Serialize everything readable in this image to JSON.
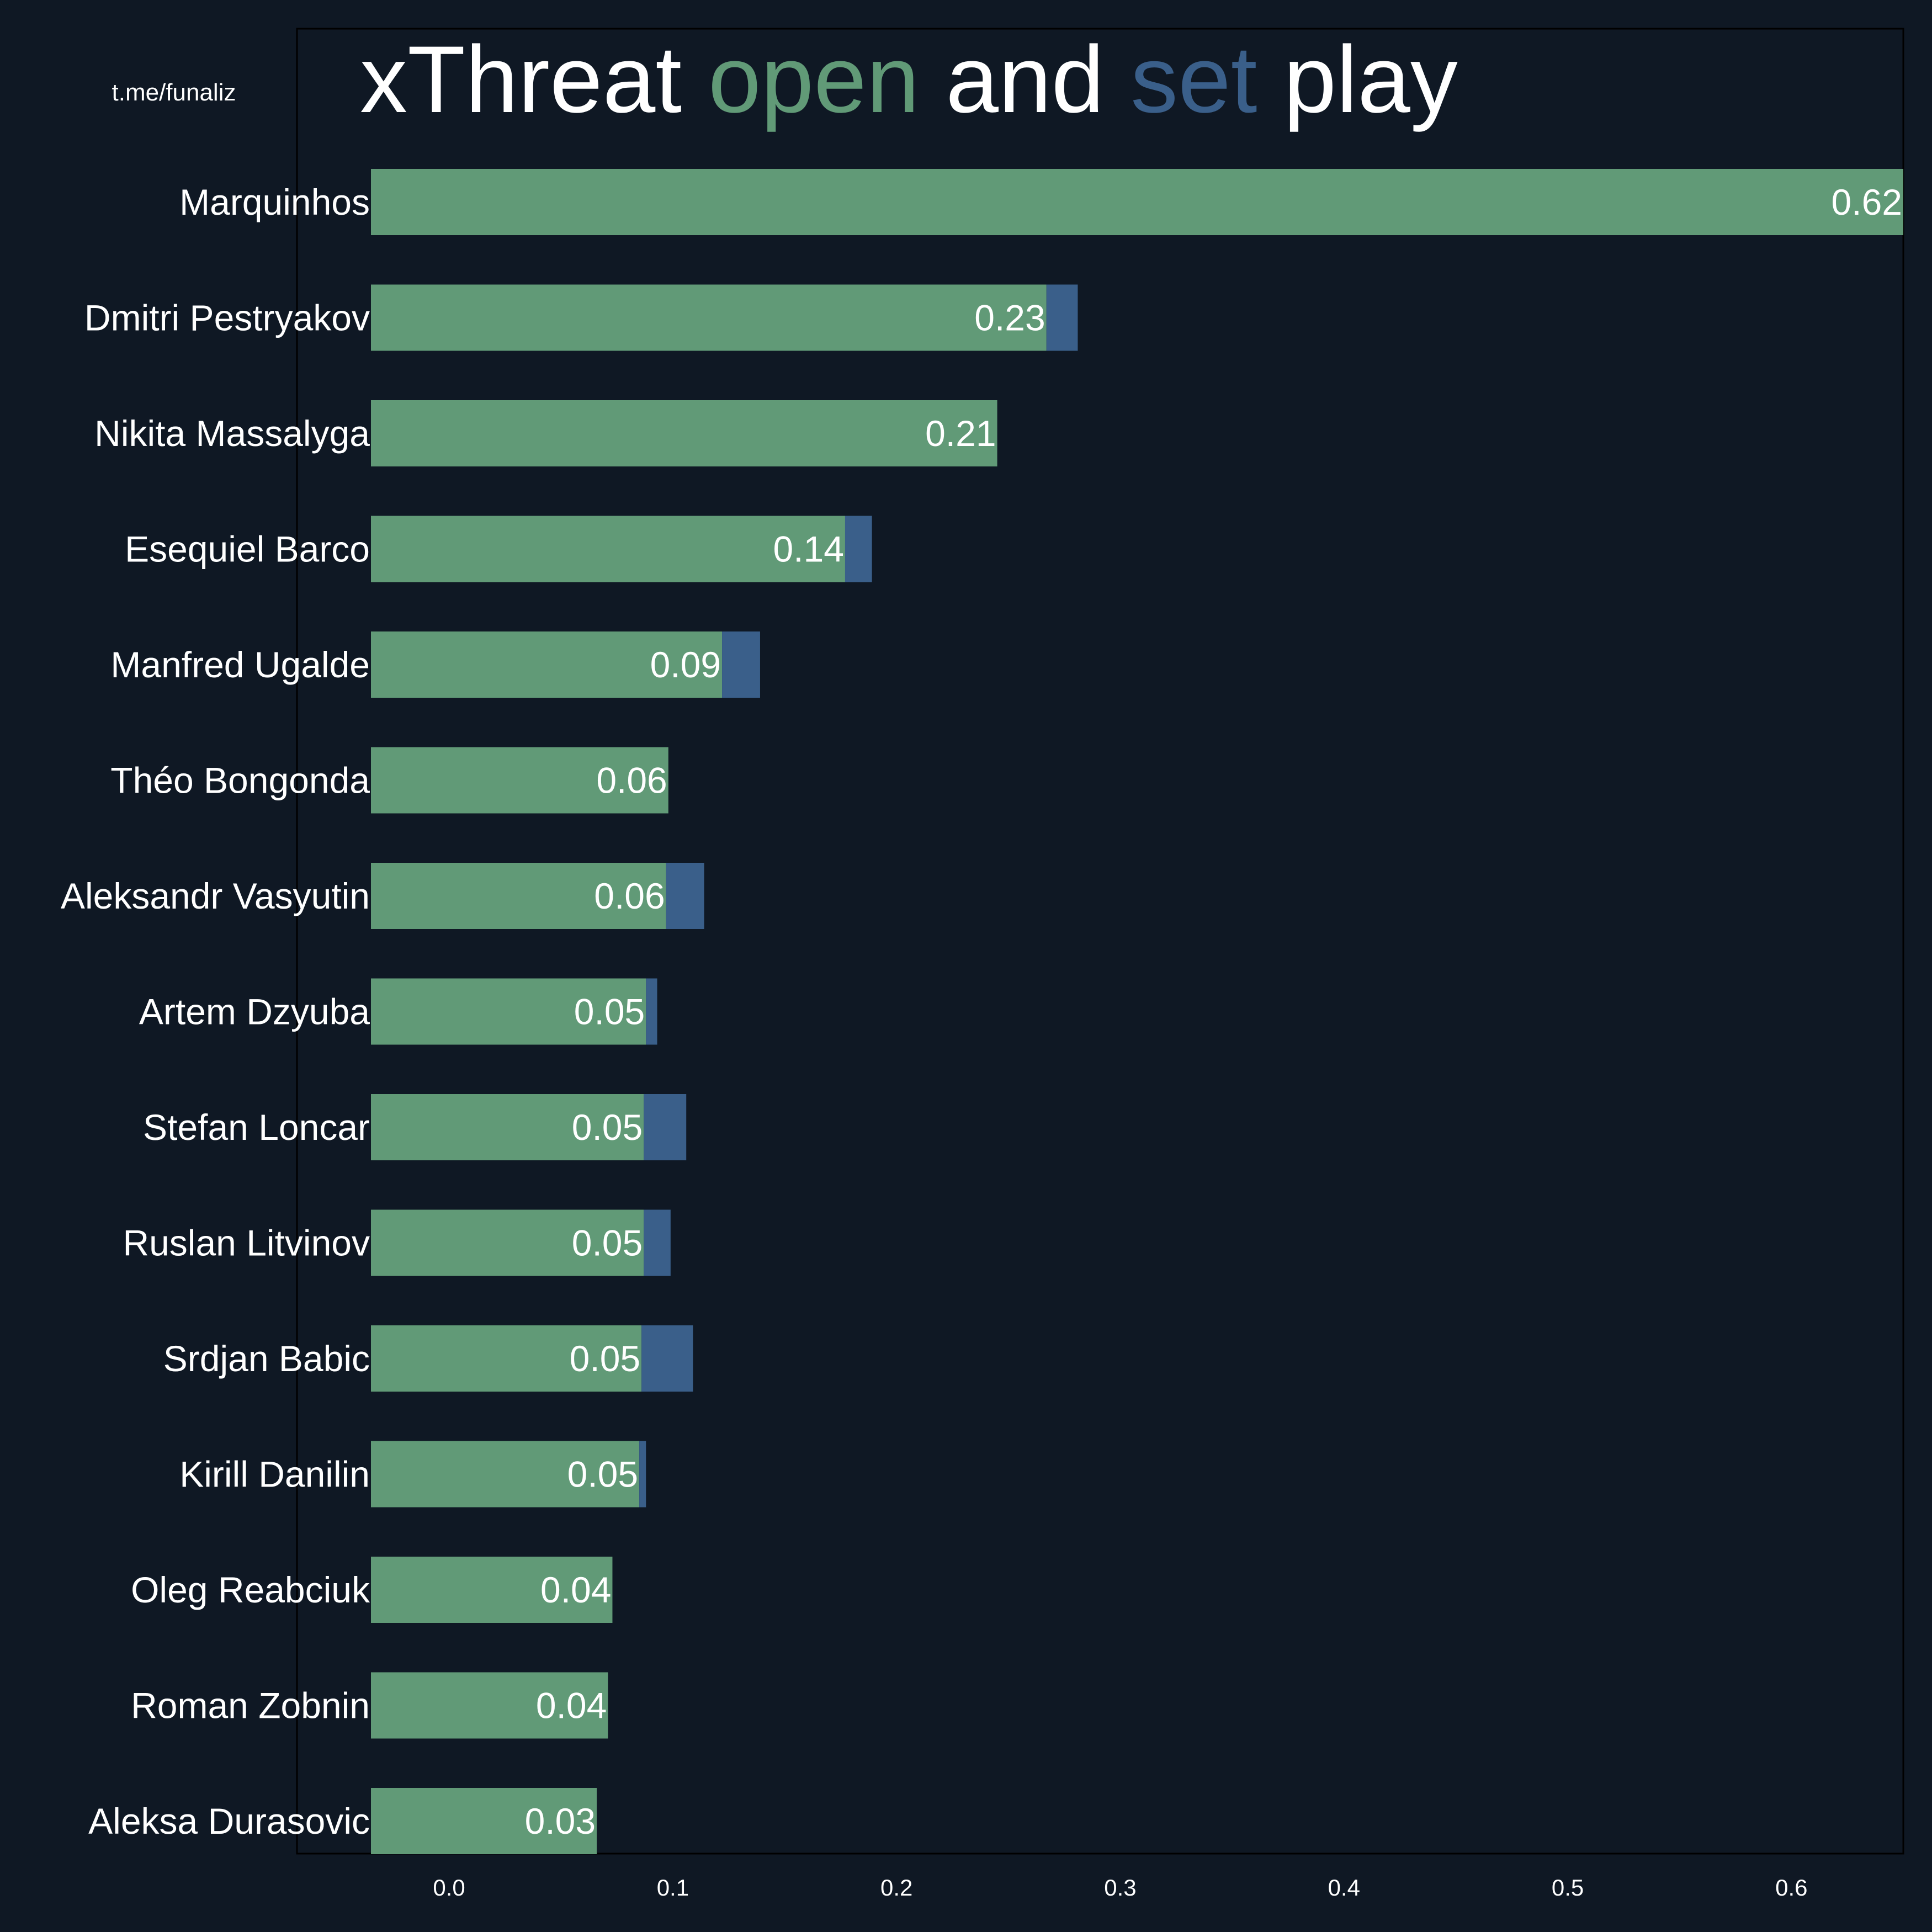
{
  "watermark": "t.me/funaliz",
  "title": {
    "parts": [
      {
        "text": "xThreat ",
        "role": "plain"
      },
      {
        "text": "open",
        "role": "open"
      },
      {
        "text": " and ",
        "role": "plain"
      },
      {
        "text": "set",
        "role": "set"
      },
      {
        "text": " play",
        "role": "plain"
      }
    ]
  },
  "colors": {
    "background": "#0f1824",
    "text": "#ffffff",
    "open_play": "#619a77",
    "set_play": "#3a5f8a",
    "axes_frame": "#000000"
  },
  "chart_data": {
    "type": "bar",
    "orientation": "horizontal",
    "stacked": true,
    "categories": [
      "Marquinhos",
      "Dmitri Pestryakov",
      "Nikita Massalyga",
      "Esequiel Barco",
      "Manfred Ugalde",
      "Théo Bongonda",
      "Aleksandr Vasyutin",
      "Artem Dzyuba",
      "Stefan Loncar",
      "Ruslan Litvinov",
      "Srdjan Babic",
      "Kirill Danilin",
      "Oleg Reabciuk",
      "Roman Zobnin",
      "Aleksa Durasovic"
    ],
    "series": [
      {
        "name": "open",
        "values": [
          0.65,
          0.267,
          0.245,
          0.177,
          0.122,
          0.098,
          0.097,
          0.088,
          0.087,
          0.087,
          0.086,
          0.085,
          0.073,
          0.071,
          0.066
        ]
      },
      {
        "name": "set",
        "values": [
          0.0,
          0.014,
          0.0,
          0.012,
          0.017,
          0.0,
          0.017,
          0.005,
          0.019,
          0.012,
          0.023,
          0.003,
          0.0,
          0.0,
          0.0
        ]
      }
    ],
    "value_labels": [
      "0.62",
      "0.23",
      "0.21",
      "0.14",
      "0.09",
      "0.06",
      "0.06",
      "0.05",
      "0.05",
      "0.05",
      "0.05",
      "0.05",
      "0.04",
      "0.04",
      "0.03"
    ],
    "xlim": [
      -0.068,
      0.65
    ],
    "xticks": [
      0.0,
      0.1,
      0.2,
      0.3,
      0.4,
      0.5,
      0.6
    ],
    "xtick_labels": [
      "0.0",
      "0.1",
      "0.2",
      "0.3",
      "0.4",
      "0.5",
      "0.6"
    ],
    "grid": false
  }
}
